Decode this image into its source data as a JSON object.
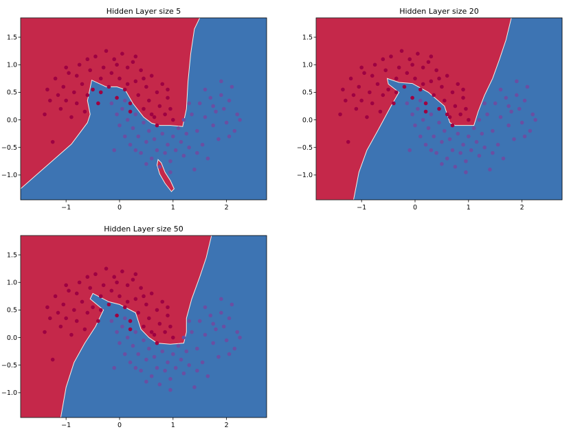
{
  "colors": {
    "class0_region": "#c5284a",
    "class1_region": "#3d74b3",
    "class0_point": "#9e0142",
    "class1_point": "#6a4fa2",
    "boundary": "#f4f1e8"
  },
  "chart_data": [
    {
      "type": "scatter",
      "title": "Hidden Layer size 5",
      "xlabel": "",
      "ylabel": "",
      "xlim": [
        -1.85,
        2.75
      ],
      "ylim": [
        -1.45,
        1.85
      ],
      "xticks": [
        "−1",
        "0",
        "1",
        "2"
      ],
      "yticks": [
        "−1.0",
        "−0.5",
        "0.0",
        "0.5",
        "1.0",
        "1.5"
      ],
      "boundary": [
        [
          -1.85,
          -1.25
        ],
        [
          -1.3,
          -0.78
        ],
        [
          -0.9,
          -0.44
        ],
        [
          -0.6,
          -0.05
        ],
        [
          -0.55,
          0.1
        ],
        [
          -0.6,
          0.35
        ],
        [
          -0.52,
          0.72
        ],
        [
          -0.25,
          0.6
        ],
        [
          -0.05,
          0.6
        ],
        [
          0.1,
          0.55
        ],
        [
          0.25,
          0.3
        ],
        [
          0.45,
          0.05
        ],
        [
          0.6,
          -0.06
        ],
        [
          0.75,
          -0.1
        ],
        [
          0.95,
          -0.1
        ],
        [
          1.18,
          -0.12
        ],
        [
          1.25,
          0.2
        ],
        [
          1.28,
          0.7
        ],
        [
          1.33,
          1.2
        ],
        [
          1.4,
          1.65
        ],
        [
          1.5,
          1.85
        ],
        [
          -1.85,
          1.85
        ]
      ],
      "island": [
        [
          0.72,
          -0.72
        ],
        [
          0.78,
          -0.78
        ],
        [
          0.85,
          -0.95
        ],
        [
          0.95,
          -1.1
        ],
        [
          1.02,
          -1.25
        ],
        [
          0.97,
          -1.3
        ],
        [
          0.85,
          -1.15
        ],
        [
          0.75,
          -0.98
        ],
        [
          0.7,
          -0.82
        ]
      ],
      "grid": false
    },
    {
      "type": "scatter",
      "title": "Hidden Layer size 20",
      "xlabel": "",
      "ylabel": "",
      "xlim": [
        -1.85,
        2.75
      ],
      "ylim": [
        -1.45,
        1.85
      ],
      "xticks": [
        "−1",
        "0",
        "1",
        "2"
      ],
      "yticks": [
        "−1.0",
        "−0.5",
        "0.0",
        "0.5",
        "1.0",
        "1.5"
      ],
      "boundary": [
        [
          -1.85,
          -1.45
        ],
        [
          -1.15,
          -1.45
        ],
        [
          -1.05,
          -0.95
        ],
        [
          -0.9,
          -0.55
        ],
        [
          -0.7,
          -0.2
        ],
        [
          -0.45,
          0.25
        ],
        [
          -0.3,
          0.5
        ],
        [
          -0.5,
          0.65
        ],
        [
          -0.52,
          0.75
        ],
        [
          -0.3,
          0.68
        ],
        [
          -0.05,
          0.66
        ],
        [
          0.25,
          0.5
        ],
        [
          0.55,
          0.25
        ],
        [
          0.65,
          -0.05
        ],
        [
          0.75,
          -0.1
        ],
        [
          0.95,
          -0.1
        ],
        [
          1.1,
          -0.1
        ],
        [
          1.18,
          0.15
        ],
        [
          1.3,
          0.45
        ],
        [
          1.45,
          0.75
        ],
        [
          1.58,
          1.1
        ],
        [
          1.7,
          1.45
        ],
        [
          1.8,
          1.85
        ],
        [
          -1.85,
          1.85
        ]
      ],
      "island": [],
      "grid": false
    },
    {
      "type": "scatter",
      "title": "Hidden Layer size 50",
      "xlabel": "",
      "ylabel": "",
      "xlim": [
        -1.85,
        2.75
      ],
      "ylim": [
        -1.45,
        1.85
      ],
      "xticks": [
        "−1",
        "0",
        "1",
        "2"
      ],
      "yticks": [
        "−1.0",
        "−0.5",
        "0.0",
        "0.5",
        "1.0",
        "1.5"
      ],
      "boundary": [
        [
          -1.85,
          -1.45
        ],
        [
          -1.1,
          -1.45
        ],
        [
          -1.0,
          -0.9
        ],
        [
          -0.85,
          -0.45
        ],
        [
          -0.65,
          -0.1
        ],
        [
          -0.45,
          0.2
        ],
        [
          -0.3,
          0.5
        ],
        [
          -0.55,
          0.7
        ],
        [
          -0.5,
          0.8
        ],
        [
          -0.2,
          0.65
        ],
        [
          0.0,
          0.6
        ],
        [
          0.3,
          0.45
        ],
        [
          0.4,
          0.15
        ],
        [
          0.55,
          0.0
        ],
        [
          0.7,
          -0.1
        ],
        [
          0.95,
          -0.12
        ],
        [
          1.2,
          -0.1
        ],
        [
          1.25,
          0.1
        ],
        [
          1.25,
          0.35
        ],
        [
          1.35,
          0.7
        ],
        [
          1.5,
          1.1
        ],
        [
          1.62,
          1.45
        ],
        [
          1.72,
          1.85
        ],
        [
          -1.85,
          1.85
        ]
      ],
      "island": [],
      "grid": false
    }
  ],
  "points_class0": [
    [
      -1.35,
      0.55
    ],
    [
      -1.3,
      0.35
    ],
    [
      -1.2,
      0.75
    ],
    [
      -1.15,
      0.45
    ],
    [
      -1.1,
      0.2
    ],
    [
      -1.05,
      0.6
    ],
    [
      -1.0,
      0.35
    ],
    [
      -0.95,
      0.85
    ],
    [
      -0.9,
      0.05
    ],
    [
      -0.85,
      0.5
    ],
    [
      -0.8,
      0.3
    ],
    [
      -0.75,
      1.0
    ],
    [
      -0.7,
      0.65
    ],
    [
      -0.65,
      0.15
    ],
    [
      -0.6,
      0.45
    ],
    [
      -0.55,
      0.9
    ],
    [
      -0.5,
      0.55
    ],
    [
      -0.45,
      1.15
    ],
    [
      -0.4,
      0.3
    ],
    [
      -0.35,
      0.75
    ],
    [
      -0.3,
      0.95
    ],
    [
      -0.25,
      1.25
    ],
    [
      -0.2,
      0.6
    ],
    [
      -0.15,
      0.85
    ],
    [
      -0.1,
      1.1
    ],
    [
      -0.05,
      0.4
    ],
    [
      0.0,
      0.75
    ],
    [
      0.05,
      1.2
    ],
    [
      0.1,
      0.55
    ],
    [
      0.15,
      0.95
    ],
    [
      0.2,
      0.3
    ],
    [
      0.25,
      1.05
    ],
    [
      0.3,
      0.7
    ],
    [
      0.35,
      0.45
    ],
    [
      0.4,
      0.9
    ],
    [
      0.45,
      0.2
    ],
    [
      0.5,
      0.6
    ],
    [
      0.55,
      0.35
    ],
    [
      0.6,
      0.8
    ],
    [
      0.65,
      0.05
    ],
    [
      0.7,
      0.5
    ],
    [
      0.75,
      0.25
    ],
    [
      0.8,
      0.65
    ],
    [
      0.85,
      0.1
    ],
    [
      0.9,
      0.4
    ],
    [
      0.95,
      0.2
    ],
    [
      1.0,
      0.0
    ],
    [
      -1.25,
      -0.4
    ],
    [
      -1.4,
      0.1
    ],
    [
      -0.6,
      1.1
    ],
    [
      0.15,
      0.65
    ],
    [
      -0.35,
      0.5
    ],
    [
      0.45,
      0.75
    ],
    [
      -0.8,
      0.8
    ],
    [
      0.3,
      1.15
    ],
    [
      -1.0,
      0.95
    ],
    [
      0.6,
      0.1
    ],
    [
      0.9,
      0.55
    ],
    [
      -0.05,
      1.0
    ],
    [
      0.2,
      0.15
    ],
    [
      0.7,
      -0.1
    ]
  ],
  "points_class1": [
    [
      -0.15,
      0.3
    ],
    [
      -0.05,
      0.1
    ],
    [
      0.0,
      -0.1
    ],
    [
      0.05,
      0.2
    ],
    [
      0.1,
      -0.3
    ],
    [
      0.15,
      0.0
    ],
    [
      0.2,
      -0.45
    ],
    [
      0.25,
      -0.15
    ],
    [
      0.3,
      0.1
    ],
    [
      0.35,
      -0.3
    ],
    [
      0.4,
      -0.6
    ],
    [
      0.45,
      -0.05
    ],
    [
      0.5,
      -0.4
    ],
    [
      0.55,
      -0.2
    ],
    [
      0.6,
      -0.7
    ],
    [
      0.65,
      -0.35
    ],
    [
      0.7,
      -0.55
    ],
    [
      0.75,
      -0.85
    ],
    [
      0.8,
      -0.25
    ],
    [
      0.85,
      -0.6
    ],
    [
      0.9,
      -0.45
    ],
    [
      0.95,
      -0.75
    ],
    [
      1.0,
      -0.3
    ],
    [
      1.05,
      -0.55
    ],
    [
      1.1,
      -0.15
    ],
    [
      1.15,
      -0.4
    ],
    [
      1.2,
      -0.65
    ],
    [
      1.25,
      -0.25
    ],
    [
      1.3,
      -0.5
    ],
    [
      1.35,
      0.1
    ],
    [
      1.4,
      -0.9
    ],
    [
      1.45,
      -0.2
    ],
    [
      1.5,
      0.3
    ],
    [
      1.55,
      -0.45
    ],
    [
      1.6,
      0.05
    ],
    [
      1.65,
      -0.7
    ],
    [
      1.7,
      0.4
    ],
    [
      1.75,
      -0.1
    ],
    [
      1.8,
      0.15
    ],
    [
      1.85,
      -0.35
    ],
    [
      1.9,
      0.45
    ],
    [
      1.95,
      0.2
    ],
    [
      2.0,
      -0.05
    ],
    [
      2.05,
      0.35
    ],
    [
      2.1,
      0.6
    ],
    [
      2.15,
      -0.2
    ],
    [
      2.2,
      0.1
    ],
    [
      1.9,
      0.7
    ],
    [
      1.6,
      0.55
    ],
    [
      1.3,
      0.3
    ],
    [
      0.95,
      -0.95
    ],
    [
      0.5,
      -0.8
    ],
    [
      -0.1,
      -0.55
    ],
    [
      2.25,
      0.0
    ],
    [
      1.2,
      0.0
    ],
    [
      0.3,
      -0.55
    ],
    [
      0.1,
      0.35
    ],
    [
      1.75,
      0.25
    ],
    [
      2.05,
      -0.3
    ],
    [
      1.45,
      -0.6
    ]
  ]
}
